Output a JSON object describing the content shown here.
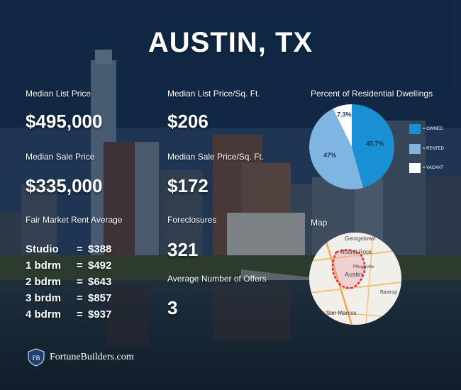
{
  "title": "AUSTIN, TX",
  "stats": {
    "median_list_price": {
      "label": "Median List Price",
      "value": "$495,000"
    },
    "median_list_sqft": {
      "label": "Median List Price/Sq. Ft.",
      "value": "$206"
    },
    "median_sale_price": {
      "label": "Median Sale Price",
      "value": "$335,000"
    },
    "median_sale_sqft": {
      "label": "Median Sale Price/Sq. Ft.",
      "value": "$172"
    },
    "foreclosures": {
      "label": "Foreclosures",
      "value": "321"
    },
    "avg_offers": {
      "label": "Average Number of Offers",
      "value": "3"
    }
  },
  "rent": {
    "label": "Fair Market Rent Average",
    "rows": [
      {
        "unit": "Studio",
        "eq": "=",
        "amount": "$388"
      },
      {
        "unit": "1 bdrm",
        "eq": "=",
        "amount": "$492"
      },
      {
        "unit": "2 bdrm",
        "eq": "=",
        "amount": "$643"
      },
      {
        "unit": "3 brdm",
        "eq": "=",
        "amount": "$857"
      },
      {
        "unit": "4 bdrm",
        "eq": "=",
        "amount": "$937"
      }
    ]
  },
  "pie": {
    "label": "Percent of Residential Dwellings",
    "slices": [
      {
        "name": "OWNED",
        "legend": "= OWNED",
        "value": 45.7,
        "display": "45.7%",
        "color": "#1a90d4"
      },
      {
        "name": "RENTED",
        "legend": "= RENTED",
        "value": 47,
        "display": "47%",
        "color": "#7fb5e0"
      },
      {
        "name": "VACANT",
        "legend": "= VACANT",
        "value": 7.3,
        "display": "7.3%",
        "color": "#ffffff"
      }
    ]
  },
  "map": {
    "label": "Map",
    "places": [
      "Georgetown",
      "Round Rock",
      "Pflugerville",
      "Austin",
      "Bastrop",
      "San Marcos"
    ]
  },
  "brand": {
    "name": "FortuneBuilders.com",
    "badge": "FB"
  }
}
